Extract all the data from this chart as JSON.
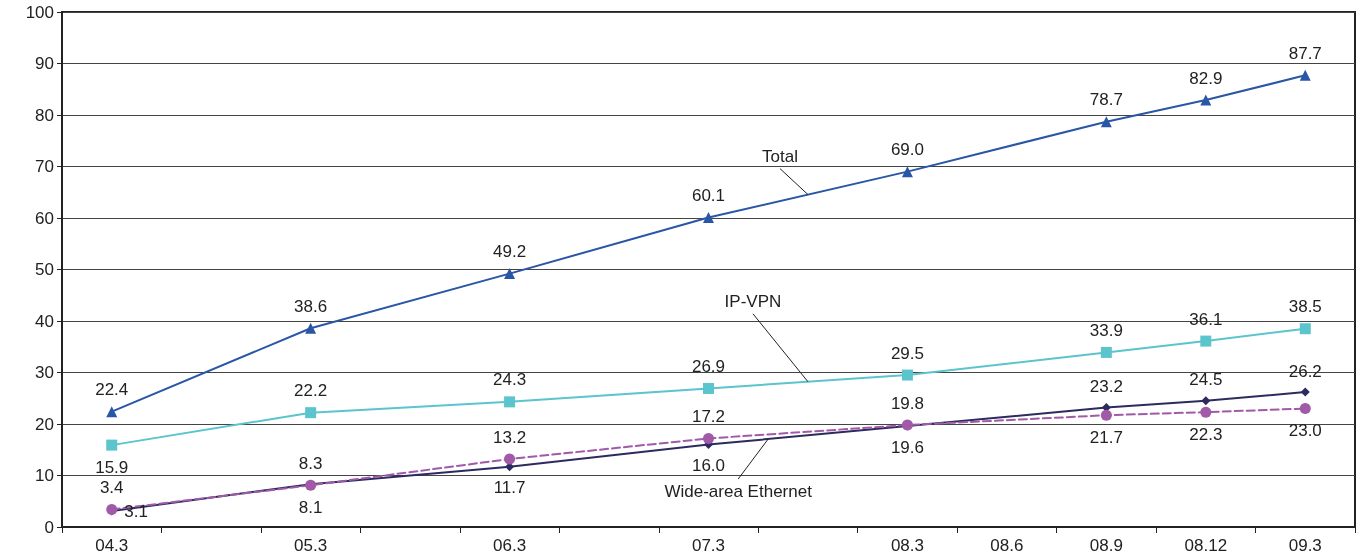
{
  "chart_data": {
    "type": "line",
    "categories": [
      "04.3",
      null,
      "05.3",
      null,
      "06.3",
      null,
      "07.3",
      null,
      "08.3",
      "08.6",
      "08.9",
      "08.12",
      "09.3"
    ],
    "ylim": [
      0,
      100
    ],
    "yticks": [
      0,
      10,
      20,
      30,
      40,
      50,
      60,
      70,
      80,
      90,
      100
    ],
    "grid": "y",
    "legend": false,
    "series": [
      {
        "name": "Total",
        "color": "#2a56a6",
        "marker": "triangle",
        "line_style": "solid",
        "values": [
          22.4,
          null,
          38.6,
          null,
          49.2,
          null,
          60.1,
          null,
          69.0,
          null,
          78.7,
          82.9,
          87.7
        ],
        "value_labels": [
          "22.4",
          null,
          "38.6",
          null,
          "49.2",
          null,
          "60.1",
          null,
          "69.0",
          null,
          "78.7",
          "82.9",
          "87.7"
        ]
      },
      {
        "name": "IP-VPN",
        "color": "#5bc4cc",
        "marker": "square",
        "line_style": "solid",
        "values": [
          15.9,
          null,
          22.2,
          null,
          24.3,
          null,
          26.9,
          null,
          29.5,
          null,
          33.9,
          36.1,
          38.5
        ],
        "value_labels": [
          "15.9",
          null,
          "22.2",
          null,
          "24.3",
          null,
          "26.9",
          null,
          "29.5",
          null,
          "33.9",
          "36.1",
          "38.5"
        ]
      },
      {
        "name": "Wide-area Ethernet",
        "color": "#2c2a5e",
        "marker": "diamond",
        "line_style": "solid",
        "values": [
          3.1,
          null,
          8.3,
          null,
          11.7,
          null,
          16.0,
          null,
          19.6,
          null,
          23.2,
          24.5,
          26.2
        ],
        "value_labels": [
          "3.1",
          null,
          "8.3",
          null,
          "11.7",
          null,
          "16.0",
          null,
          "19.6",
          null,
          "23.2",
          "24.5",
          "26.2"
        ]
      },
      {
        "color": "#a05aa8",
        "marker": "circle",
        "line_style": "dashed",
        "values": [
          3.4,
          null,
          8.1,
          null,
          13.2,
          null,
          17.2,
          null,
          19.8,
          null,
          21.7,
          22.3,
          23.0
        ],
        "value_labels": [
          "3.4",
          null,
          "8.1",
          null,
          "13.2",
          null,
          "17.2",
          null,
          "19.8",
          null,
          "21.7",
          "22.3",
          "23.0"
        ]
      }
    ]
  }
}
